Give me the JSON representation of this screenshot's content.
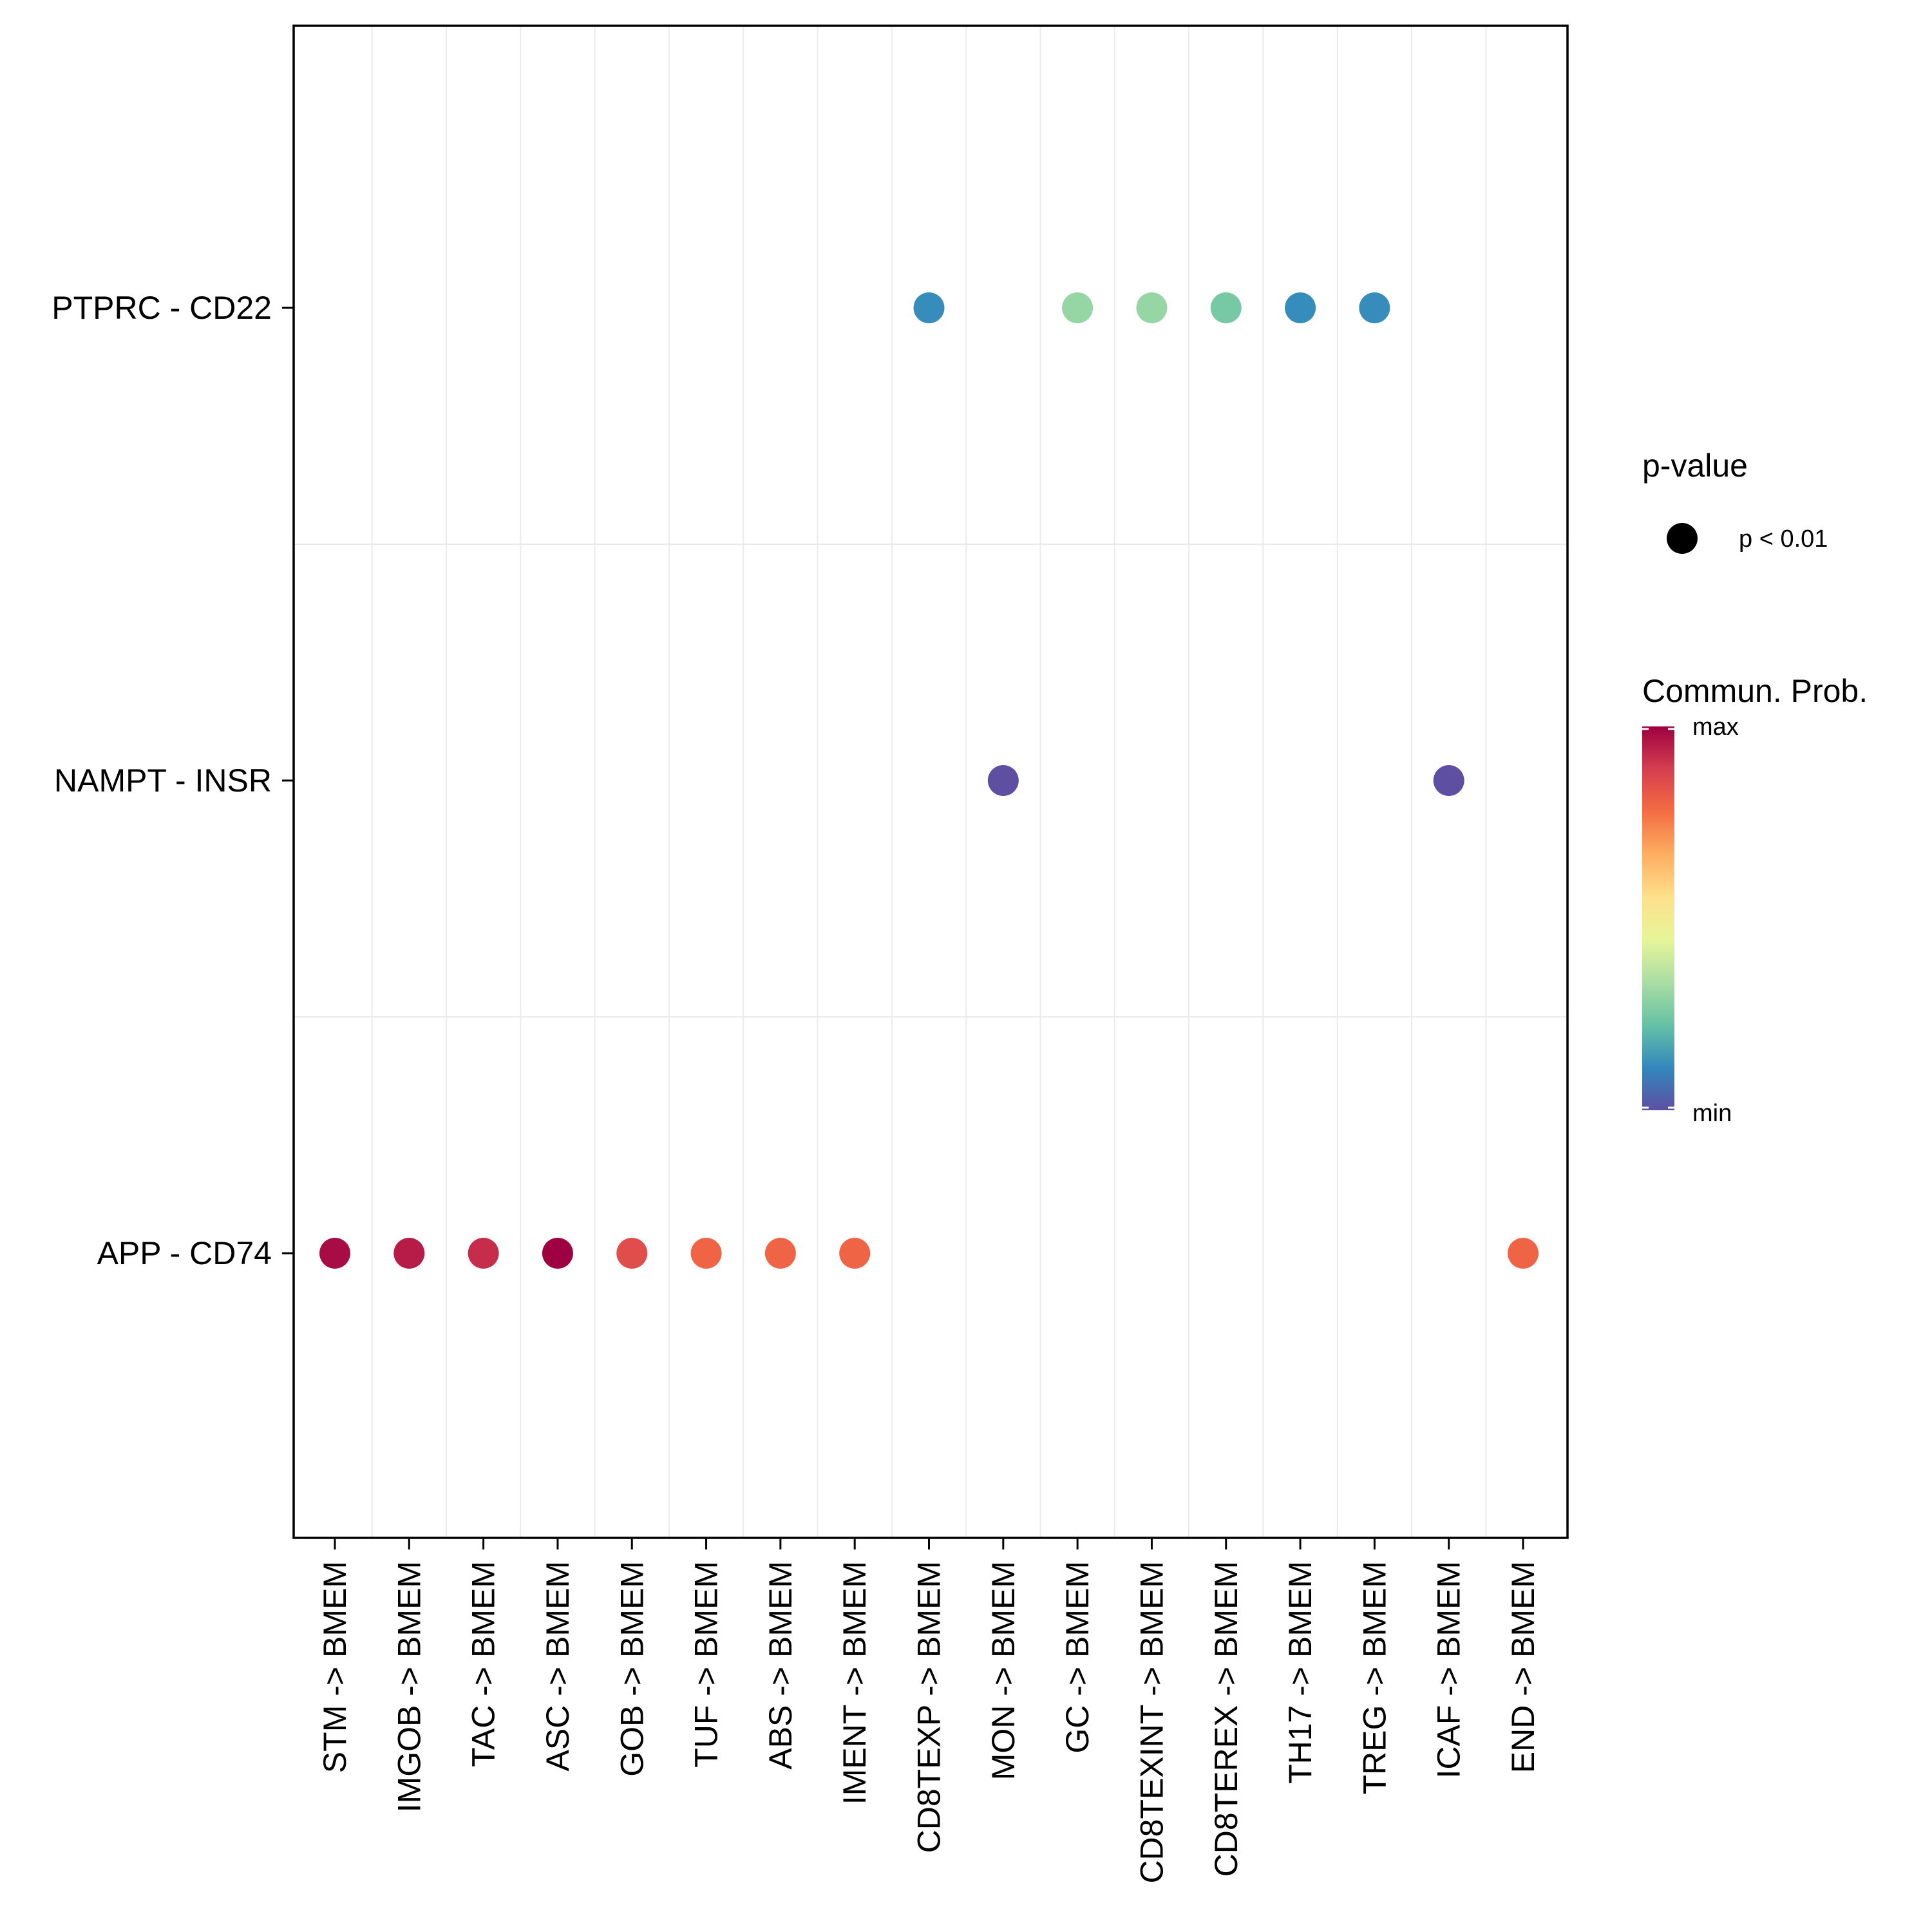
{
  "chart_data": {
    "type": "scatter",
    "title": "",
    "xlabel": "",
    "ylabel": "",
    "grid": true,
    "categories": [
      "STM -> BMEM",
      "IMGOB -> BMEM",
      "TAC -> BMEM",
      "ASC -> BMEM",
      "GOB -> BMEM",
      "TUF -> BMEM",
      "ABS -> BMEM",
      "IMENT -> BMEM",
      "CD8TEXP -> BMEM",
      "MON -> BMEM",
      "GC -> BMEM",
      "CD8TEXINT -> BMEM",
      "CD8TEREX -> BMEM",
      "TH17 -> BMEM",
      "TREG -> BMEM",
      "ICAF -> BMEM",
      "END -> BMEM"
    ],
    "rows": [
      "APP - CD74",
      "NAMPT - INSR",
      "PTPRC - CD22"
    ],
    "points": [
      {
        "x": "STM -> BMEM",
        "y": "APP - CD74",
        "prob": 0.98
      },
      {
        "x": "IMGOB -> BMEM",
        "y": "APP - CD74",
        "prob": 0.95
      },
      {
        "x": "TAC -> BMEM",
        "y": "APP - CD74",
        "prob": 0.92
      },
      {
        "x": "ASC -> BMEM",
        "y": "APP - CD74",
        "prob": 1.0
      },
      {
        "x": "GOB -> BMEM",
        "y": "APP - CD74",
        "prob": 0.85
      },
      {
        "x": "TUF -> BMEM",
        "y": "APP - CD74",
        "prob": 0.8
      },
      {
        "x": "ABS -> BMEM",
        "y": "APP - CD74",
        "prob": 0.8
      },
      {
        "x": "IMENT -> BMEM",
        "y": "APP - CD74",
        "prob": 0.8
      },
      {
        "x": "END -> BMEM",
        "y": "APP - CD74",
        "prob": 0.8
      },
      {
        "x": "MON -> BMEM",
        "y": "NAMPT - INSR",
        "prob": 0.0
      },
      {
        "x": "ICAF -> BMEM",
        "y": "NAMPT - INSR",
        "prob": 0.0
      },
      {
        "x": "CD8TEXP -> BMEM",
        "y": "PTPRC - CD22",
        "prob": 0.12
      },
      {
        "x": "GC -> BMEM",
        "y": "PTPRC - CD22",
        "prob": 0.3
      },
      {
        "x": "CD8TEXINT -> BMEM",
        "y": "PTPRC - CD22",
        "prob": 0.3
      },
      {
        "x": "CD8TEREX -> BMEM",
        "y": "PTPRC - CD22",
        "prob": 0.25
      },
      {
        "x": "TH17 -> BMEM",
        "y": "PTPRC - CD22",
        "prob": 0.12
      },
      {
        "x": "TREG -> BMEM",
        "y": "PTPRC - CD22",
        "prob": 0.12
      }
    ],
    "legend": {
      "placement": "right",
      "pvalue": {
        "title": "p-value",
        "label": "p < 0.01"
      },
      "colorbar": {
        "title": "Commun. Prob.",
        "max_label": "max",
        "min_label": "min",
        "colors": [
          "#5E4FA2",
          "#3288BD",
          "#66C2A5",
          "#ABDDA4",
          "#E6F598",
          "#FEE08B",
          "#FDAE61",
          "#F46D43",
          "#D53E4F",
          "#9E0142"
        ]
      }
    }
  }
}
